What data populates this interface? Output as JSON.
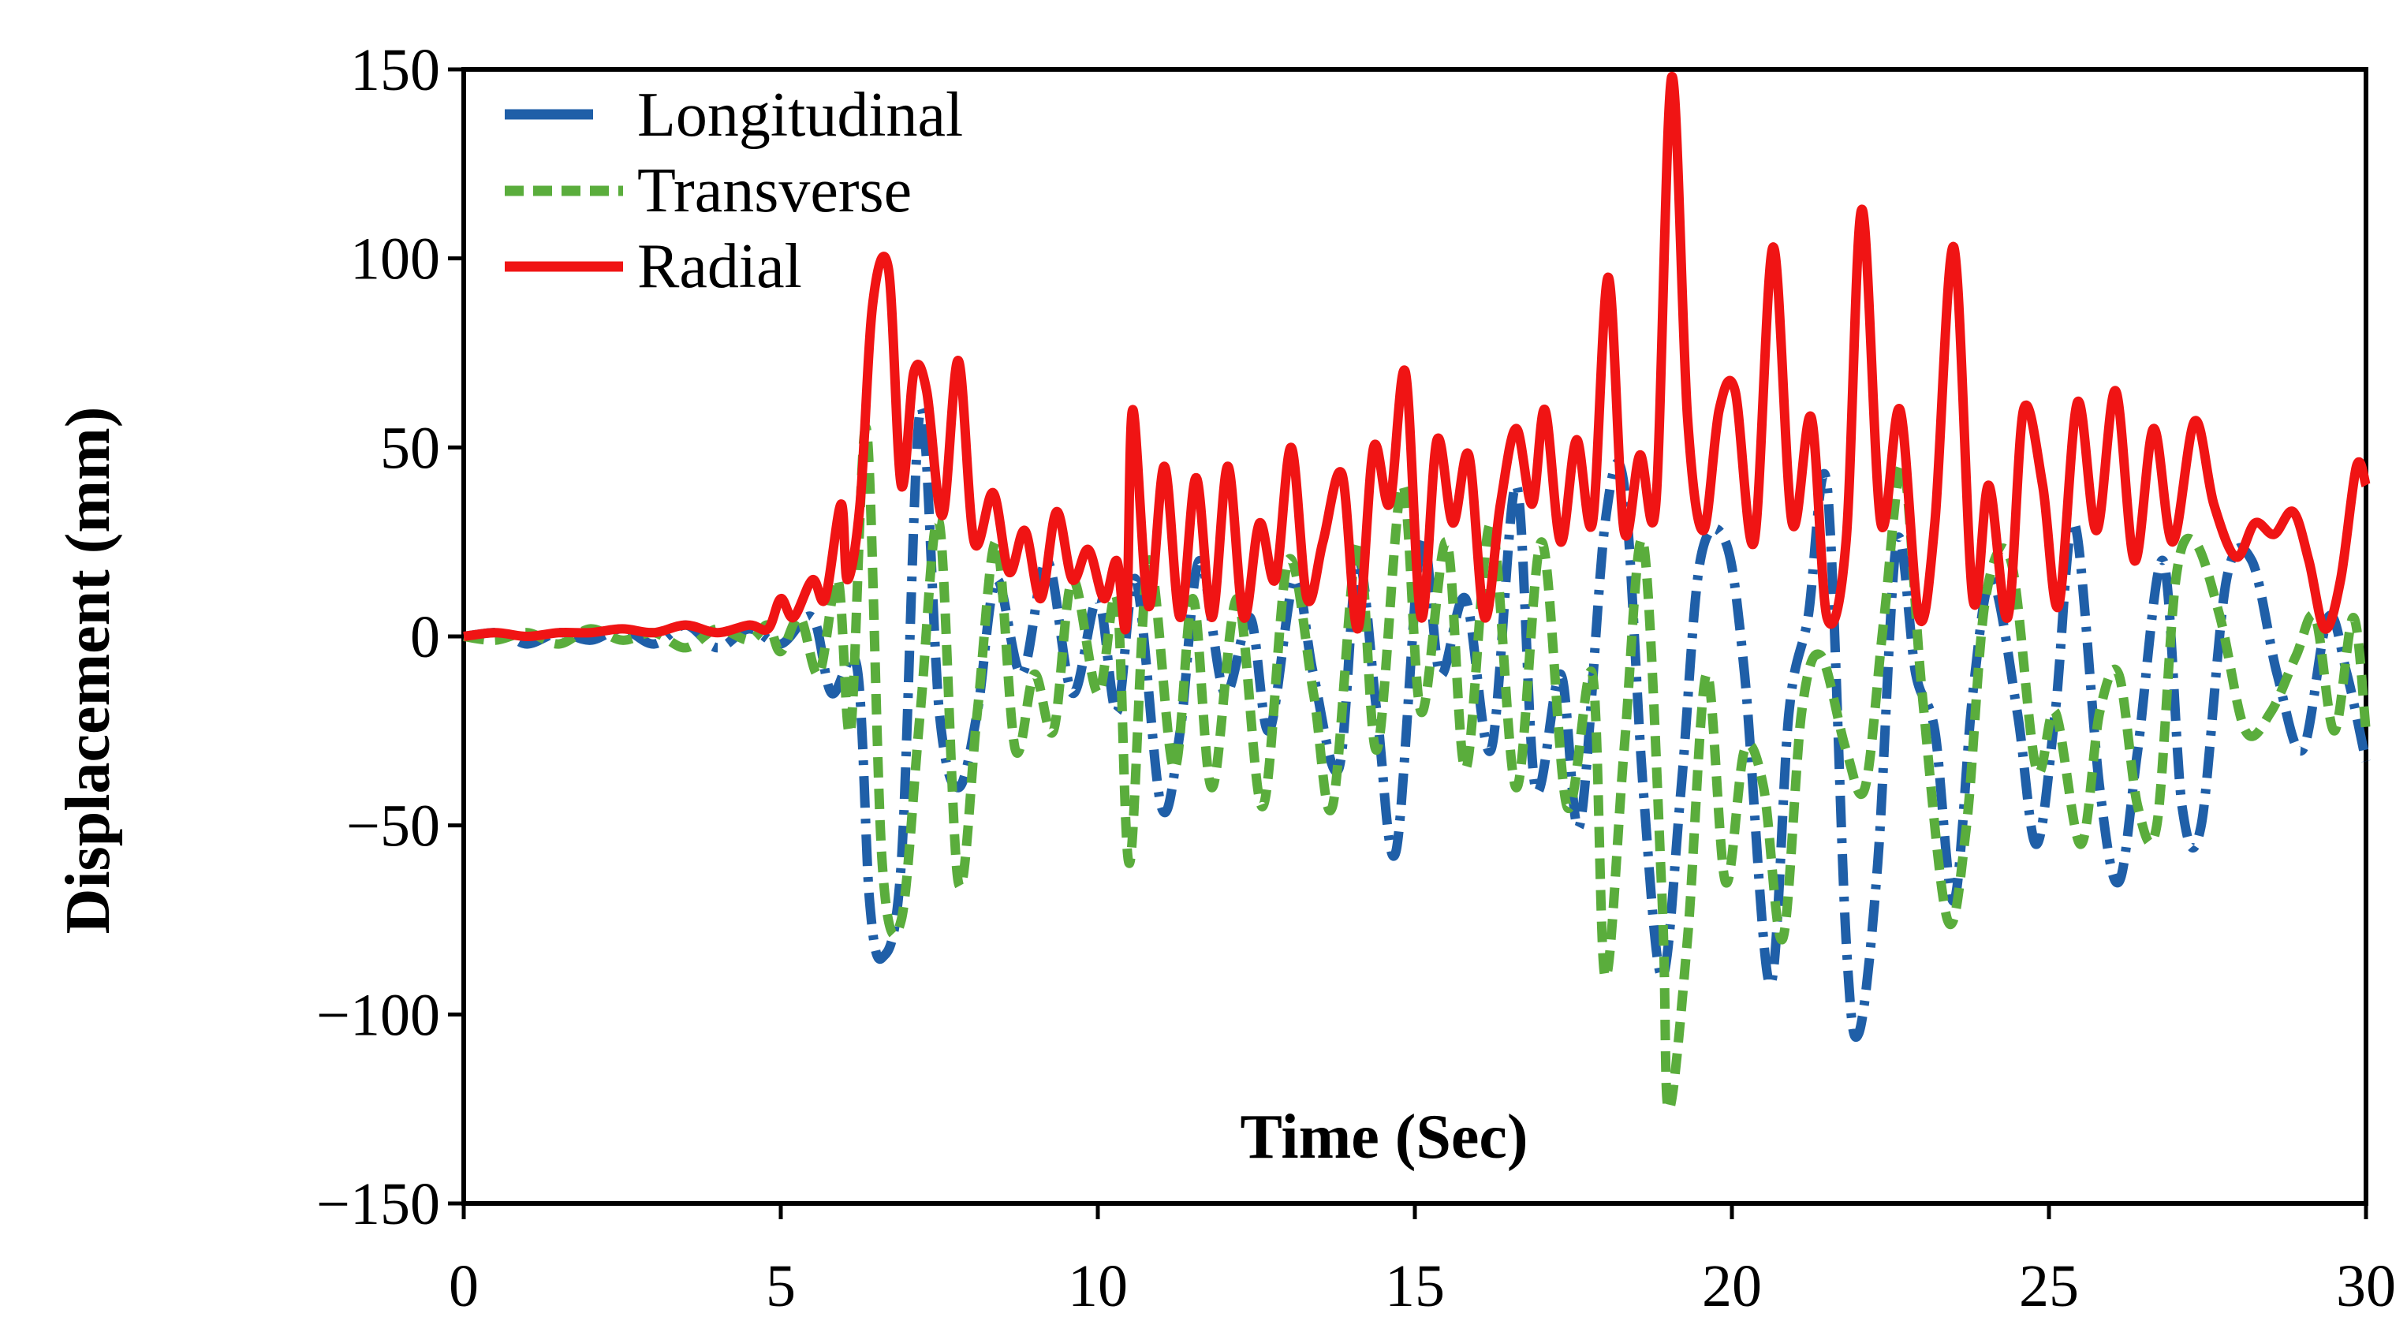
{
  "chart_data": {
    "type": "line",
    "title": "",
    "xlabel": "Time (Sec)",
    "ylabel": "Displacement (mm)",
    "xlim": [
      0,
      30
    ],
    "ylim": [
      -150,
      150
    ],
    "x_ticks": [
      "0",
      "5",
      "10",
      "15",
      "20",
      "25",
      "30"
    ],
    "y_ticks": [
      "150",
      "100",
      "50",
      "0",
      "−50",
      "−100",
      "−150"
    ],
    "x_tick_values": [
      0,
      5,
      10,
      15,
      20,
      25,
      30
    ],
    "y_tick_values": [
      150,
      100,
      50,
      0,
      -50,
      -100,
      -150
    ],
    "grid": false,
    "legend_position": "top-left",
    "series": [
      {
        "name": "Longitudinal",
        "color": "#1f5fa8",
        "style": "dashdot",
        "points": [
          [
            0,
            0
          ],
          [
            0.6,
            1
          ],
          [
            1,
            -2
          ],
          [
            1.5,
            1
          ],
          [
            2,
            -1
          ],
          [
            2.5,
            2
          ],
          [
            3,
            -2
          ],
          [
            3.5,
            3
          ],
          [
            4,
            -3
          ],
          [
            4.5,
            2
          ],
          [
            5,
            -2
          ],
          [
            5.5,
            5
          ],
          [
            5.8,
            -15
          ],
          [
            6.2,
            -8
          ],
          [
            6.4,
            -70
          ],
          [
            6.6,
            -85
          ],
          [
            6.9,
            -60
          ],
          [
            7.2,
            60
          ],
          [
            7.5,
            -20
          ],
          [
            7.8,
            -40
          ],
          [
            8.1,
            -20
          ],
          [
            8.4,
            15
          ],
          [
            8.8,
            -10
          ],
          [
            9.2,
            20
          ],
          [
            9.6,
            -15
          ],
          [
            10,
            10
          ],
          [
            10.3,
            -20
          ],
          [
            10.6,
            15
          ],
          [
            11,
            -45
          ],
          [
            11.3,
            -25
          ],
          [
            11.6,
            20
          ],
          [
            12,
            -15
          ],
          [
            12.4,
            5
          ],
          [
            12.7,
            -25
          ],
          [
            13.1,
            15
          ],
          [
            13.4,
            -10
          ],
          [
            13.8,
            -35
          ],
          [
            14.1,
            20
          ],
          [
            14.4,
            -20
          ],
          [
            14.7,
            -57
          ],
          [
            15.1,
            25
          ],
          [
            15.4,
            -10
          ],
          [
            15.8,
            10
          ],
          [
            16.2,
            -30
          ],
          [
            16.6,
            40
          ],
          [
            16.9,
            -40
          ],
          [
            17.3,
            -10
          ],
          [
            17.6,
            -50
          ],
          [
            18,
            30
          ],
          [
            18.3,
            40
          ],
          [
            18.6,
            -40
          ],
          [
            18.9,
            -90
          ],
          [
            19.2,
            -40
          ],
          [
            19.5,
            20
          ],
          [
            19.9,
            25
          ],
          [
            20.2,
            -10
          ],
          [
            20.6,
            -92
          ],
          [
            20.9,
            -20
          ],
          [
            21.2,
            5
          ],
          [
            21.5,
            40
          ],
          [
            21.8,
            -80
          ],
          [
            22,
            -105
          ],
          [
            22.3,
            -60
          ],
          [
            22.6,
            25
          ],
          [
            22.9,
            -10
          ],
          [
            23.2,
            -25
          ],
          [
            23.5,
            -70
          ],
          [
            23.8,
            -15
          ],
          [
            24.1,
            15
          ],
          [
            24.5,
            -20
          ],
          [
            24.8,
            -55
          ],
          [
            25.1,
            -20
          ],
          [
            25.4,
            30
          ],
          [
            25.8,
            -40
          ],
          [
            26.1,
            -65
          ],
          [
            26.4,
            -30
          ],
          [
            26.8,
            20
          ],
          [
            27.1,
            -45
          ],
          [
            27.4,
            -50
          ],
          [
            27.8,
            15
          ],
          [
            28.2,
            20
          ],
          [
            28.6,
            -10
          ],
          [
            29,
            -30
          ],
          [
            29.4,
            5
          ],
          [
            29.7,
            -10
          ],
          [
            30,
            -33
          ]
        ]
      },
      {
        "name": "Transverse",
        "color": "#5aad3c",
        "style": "dashed",
        "points": [
          [
            0,
            0
          ],
          [
            0.5,
            -1
          ],
          [
            1,
            1
          ],
          [
            1.5,
            -2
          ],
          [
            2,
            2
          ],
          [
            2.5,
            -1
          ],
          [
            3,
            1
          ],
          [
            3.5,
            -3
          ],
          [
            4,
            2
          ],
          [
            4.5,
            -1
          ],
          [
            4.8,
            3
          ],
          [
            5,
            -4
          ],
          [
            5.3,
            5
          ],
          [
            5.6,
            -10
          ],
          [
            5.9,
            15
          ],
          [
            6.1,
            -25
          ],
          [
            6.35,
            55
          ],
          [
            6.6,
            -60
          ],
          [
            6.9,
            -75
          ],
          [
            7.2,
            -20
          ],
          [
            7.5,
            30
          ],
          [
            7.8,
            -65
          ],
          [
            8.1,
            -20
          ],
          [
            8.4,
            25
          ],
          [
            8.7,
            -30
          ],
          [
            9,
            -10
          ],
          [
            9.3,
            -25
          ],
          [
            9.6,
            15
          ],
          [
            10,
            -15
          ],
          [
            10.3,
            10
          ],
          [
            10.5,
            -60
          ],
          [
            10.8,
            20
          ],
          [
            11.2,
            -35
          ],
          [
            11.5,
            10
          ],
          [
            11.8,
            -40
          ],
          [
            12.2,
            10
          ],
          [
            12.6,
            -45
          ],
          [
            13,
            20
          ],
          [
            13.4,
            -15
          ],
          [
            13.7,
            -45
          ],
          [
            14.1,
            25
          ],
          [
            14.4,
            -30
          ],
          [
            14.8,
            40
          ],
          [
            15.1,
            -20
          ],
          [
            15.5,
            25
          ],
          [
            15.8,
            -35
          ],
          [
            16.2,
            30
          ],
          [
            16.6,
            -40
          ],
          [
            17,
            25
          ],
          [
            17.4,
            -45
          ],
          [
            17.8,
            -10
          ],
          [
            18,
            -90
          ],
          [
            18.3,
            -30
          ],
          [
            18.6,
            25
          ],
          [
            18.9,
            -70
          ],
          [
            19,
            -125
          ],
          [
            19.3,
            -80
          ],
          [
            19.6,
            -10
          ],
          [
            19.9,
            -65
          ],
          [
            20.2,
            -30
          ],
          [
            20.5,
            -40
          ],
          [
            20.8,
            -80
          ],
          [
            21.1,
            -20
          ],
          [
            21.4,
            -5
          ],
          [
            21.8,
            -30
          ],
          [
            22.1,
            -40
          ],
          [
            22.4,
            5
          ],
          [
            22.7,
            45
          ],
          [
            23,
            -15
          ],
          [
            23.4,
            -75
          ],
          [
            23.7,
            -50
          ],
          [
            24,
            10
          ],
          [
            24.4,
            20
          ],
          [
            24.8,
            -35
          ],
          [
            25.1,
            -20
          ],
          [
            25.5,
            -55
          ],
          [
            25.8,
            -20
          ],
          [
            26.1,
            -10
          ],
          [
            26.4,
            -45
          ],
          [
            26.7,
            -50
          ],
          [
            27,
            15
          ],
          [
            27.3,
            25
          ],
          [
            27.7,
            5
          ],
          [
            28.1,
            -25
          ],
          [
            28.5,
            -20
          ],
          [
            28.9,
            -5
          ],
          [
            29.2,
            5
          ],
          [
            29.5,
            -25
          ],
          [
            29.8,
            5
          ],
          [
            30,
            -25
          ]
        ]
      },
      {
        "name": "Radial",
        "color": "#f01414",
        "style": "solid",
        "points": [
          [
            0,
            0
          ],
          [
            0.5,
            1
          ],
          [
            1,
            0
          ],
          [
            1.5,
            1
          ],
          [
            2,
            1
          ],
          [
            2.5,
            2
          ],
          [
            3,
            1
          ],
          [
            3.5,
            3
          ],
          [
            4,
            1
          ],
          [
            4.5,
            3
          ],
          [
            4.8,
            2
          ],
          [
            5,
            10
          ],
          [
            5.2,
            5
          ],
          [
            5.5,
            15
          ],
          [
            5.7,
            10
          ],
          [
            5.95,
            35
          ],
          [
            6.05,
            15
          ],
          [
            6.25,
            35
          ],
          [
            6.45,
            88
          ],
          [
            6.7,
            97
          ],
          [
            6.9,
            40
          ],
          [
            7.1,
            70
          ],
          [
            7.3,
            65
          ],
          [
            7.55,
            32
          ],
          [
            7.8,
            73
          ],
          [
            8.05,
            25
          ],
          [
            8.35,
            38
          ],
          [
            8.6,
            17
          ],
          [
            8.85,
            28
          ],
          [
            9.1,
            10
          ],
          [
            9.35,
            33
          ],
          [
            9.6,
            15
          ],
          [
            9.85,
            23
          ],
          [
            10.1,
            10
          ],
          [
            10.3,
            20
          ],
          [
            10.45,
            3
          ],
          [
            10.55,
            60
          ],
          [
            10.8,
            8
          ],
          [
            11.05,
            45
          ],
          [
            11.3,
            5
          ],
          [
            11.55,
            42
          ],
          [
            11.8,
            5
          ],
          [
            12.05,
            45
          ],
          [
            12.3,
            5
          ],
          [
            12.55,
            30
          ],
          [
            12.8,
            15
          ],
          [
            13.05,
            50
          ],
          [
            13.3,
            10
          ],
          [
            13.55,
            25
          ],
          [
            13.85,
            43
          ],
          [
            14.1,
            2
          ],
          [
            14.35,
            50
          ],
          [
            14.6,
            35
          ],
          [
            14.85,
            70
          ],
          [
            15.1,
            5
          ],
          [
            15.35,
            52
          ],
          [
            15.6,
            30
          ],
          [
            15.85,
            48
          ],
          [
            16.1,
            5
          ],
          [
            16.35,
            35
          ],
          [
            16.6,
            55
          ],
          [
            16.85,
            35
          ],
          [
            17.05,
            60
          ],
          [
            17.3,
            25
          ],
          [
            17.55,
            52
          ],
          [
            17.8,
            30
          ],
          [
            18.05,
            95
          ],
          [
            18.3,
            28
          ],
          [
            18.55,
            48
          ],
          [
            18.8,
            35
          ],
          [
            19.05,
            148
          ],
          [
            19.3,
            58
          ],
          [
            19.55,
            28
          ],
          [
            19.8,
            60
          ],
          [
            20.05,
            65
          ],
          [
            20.35,
            25
          ],
          [
            20.65,
            103
          ],
          [
            20.95,
            30
          ],
          [
            21.25,
            58
          ],
          [
            21.5,
            5
          ],
          [
            21.8,
            25
          ],
          [
            22.05,
            113
          ],
          [
            22.35,
            30
          ],
          [
            22.65,
            60
          ],
          [
            22.95,
            5
          ],
          [
            23.2,
            30
          ],
          [
            23.5,
            103
          ],
          [
            23.8,
            10
          ],
          [
            24.05,
            40
          ],
          [
            24.35,
            5
          ],
          [
            24.6,
            60
          ],
          [
            24.9,
            40
          ],
          [
            25.15,
            8
          ],
          [
            25.45,
            62
          ],
          [
            25.75,
            28
          ],
          [
            26.05,
            65
          ],
          [
            26.35,
            20
          ],
          [
            26.65,
            55
          ],
          [
            26.95,
            25
          ],
          [
            27.3,
            57
          ],
          [
            27.6,
            35
          ],
          [
            27.95,
            21
          ],
          [
            28.25,
            30
          ],
          [
            28.55,
            27
          ],
          [
            28.85,
            33
          ],
          [
            29.1,
            20
          ],
          [
            29.35,
            2
          ],
          [
            29.6,
            15
          ],
          [
            29.85,
            45
          ],
          [
            30,
            40
          ]
        ]
      }
    ]
  }
}
